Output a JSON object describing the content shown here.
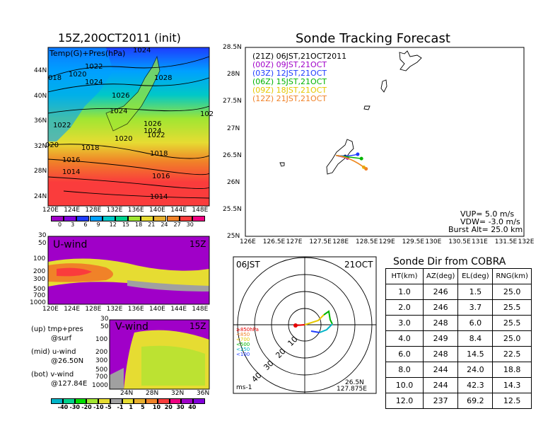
{
  "left_title": "15Z,20OCT2011 (init)",
  "right_title": "Sonde Tracking Forecast",
  "map_panel": {
    "label": "Temp(G)+Pres(hPa)",
    "lat_ticks": [
      "44N",
      "40N",
      "36N",
      "32N",
      "28N",
      "24N"
    ],
    "lon_ticks": [
      "120E",
      "124E",
      "128E",
      "132E",
      "136E",
      "140E",
      "144E",
      "148E"
    ],
    "isobar_labels": [
      "1024",
      "1020",
      "1022",
      "018",
      "1024",
      "1028",
      "1026",
      "1024",
      "1022",
      "1026",
      "1024",
      "1022",
      "1020",
      "020",
      "1018",
      "1016",
      "1018",
      "1014",
      "1016",
      "1014",
      "102"
    ],
    "colorbar_labels": [
      "0",
      "3",
      "6",
      "9",
      "12",
      "15",
      "18",
      "21",
      "24",
      "27",
      "30"
    ],
    "colorbar_colors": [
      "#a000c8",
      "#8200dc",
      "#1e3cff",
      "#00a0ff",
      "#00c8c8",
      "#00d28c",
      "#a0e632",
      "#e6dc32",
      "#e6af2d",
      "#f08228",
      "#fa3c3c",
      "#f00082"
    ]
  },
  "u_panel": {
    "label": "U-wind",
    "time": "15Z",
    "p_ticks": [
      "30",
      "50",
      "100",
      "200",
      "300",
      "500",
      "700",
      "1000"
    ],
    "lon_ticks": [
      "120E",
      "124E",
      "128E",
      "132E",
      "136E",
      "140E",
      "144E",
      "148E"
    ]
  },
  "v_panel": {
    "label": "V-wind",
    "time": "15Z",
    "p_ticks": [
      "30",
      "50",
      "100",
      "200",
      "300",
      "500",
      "700",
      "1000"
    ],
    "lat_ticks": [
      "24N",
      "28N",
      "32N",
      "36N"
    ]
  },
  "notes": [
    {
      "head": "(up) tmp+pres",
      "sub": "@surf"
    },
    {
      "head": "(mid) u-wind",
      "sub": "@26.50N"
    },
    {
      "head": "(bot) v-wind",
      "sub": "@127.84E"
    }
  ],
  "wind_colorbar": {
    "labels": [
      "-40",
      "-30",
      "-20",
      "-10",
      "-5",
      "-1",
      "1",
      "5",
      "10",
      "20",
      "30",
      "40"
    ],
    "colors": [
      "#00b4c8",
      "#00d28c",
      "#00dc00",
      "#a0e632",
      "#e6dc32",
      "#a0a0a0",
      "#e6dc32",
      "#e6af2d",
      "#f08228",
      "#fa3c3c",
      "#f00082",
      "#a000c8",
      "#8200dc"
    ]
  },
  "track_panel": {
    "lat_ticks": [
      "28.5N",
      "28N",
      "27.5N",
      "27N",
      "26.5N",
      "26N",
      "25.5N",
      "25N"
    ],
    "lon_ticks": [
      "126E",
      "126.5E",
      "127E",
      "127.5E",
      "128E",
      "128.5E",
      "129E",
      "129.5E",
      "130E",
      "130.5E",
      "131E",
      "131.5E",
      "132E"
    ],
    "legend": [
      {
        "text": "(21Z) 06JST,21OCT2011",
        "color": "#000000"
      },
      {
        "text": "(00Z) 09JST,21OCT",
        "color": "#a000c8"
      },
      {
        "text": "(03Z) 12JST,21OCT",
        "color": "#1e3cff"
      },
      {
        "text": "(06Z) 15JST,21OCT",
        "color": "#00b400"
      },
      {
        "text": "(09Z) 18JST,21OCT",
        "color": "#e6c800"
      },
      {
        "text": "(12Z) 21JST,21OCT",
        "color": "#f08228"
      }
    ],
    "params": [
      "VUP=  5.0 m/s",
      "VDW= -3.0 m/s",
      "Burst Alt= 25.0 km"
    ]
  },
  "polar_panel": {
    "top_left": "06JST",
    "top_right": "21OCT",
    "ring_labels": [
      "10",
      "20",
      "30",
      "40"
    ],
    "level_legend": [
      {
        "text": "≥850hPa",
        "color": "#e60000"
      },
      {
        "text": "<850",
        "color": "#f08228"
      },
      {
        "text": "<700",
        "color": "#e6c800"
      },
      {
        "text": "<500",
        "color": "#00b400"
      },
      {
        "text": "<250",
        "color": "#00b4c8"
      },
      {
        "text": "<100",
        "color": "#1e3cff"
      }
    ],
    "bottom_left": "ms-1",
    "lat_label": "26.5N",
    "lon_label": "127.875E"
  },
  "sonde_table": {
    "title": "Sonde Dir from COBRA",
    "headers": [
      "HT(km)",
      "AZ(deg)",
      "EL(deg)",
      "RNG(km)"
    ],
    "rows": [
      [
        "1.0",
        "246",
        "1.5",
        "25.0"
      ],
      [
        "2.0",
        "246",
        "3.7",
        "25.5"
      ],
      [
        "3.0",
        "248",
        "6.0",
        "25.5"
      ],
      [
        "4.0",
        "249",
        "8.4",
        "25.0"
      ],
      [
        "6.0",
        "248",
        "14.5",
        "22.5"
      ],
      [
        "8.0",
        "244",
        "24.0",
        "18.8"
      ],
      [
        "10.0",
        "244",
        "42.3",
        "14.3"
      ],
      [
        "12.0",
        "237",
        "69.2",
        "12.5"
      ]
    ]
  },
  "chart_data": [
    {
      "type": "heatmap",
      "title": "15Z,20OCT2011 (init)",
      "subtitle": "Temp(G)+Pres(hPa)",
      "xlim": [
        120,
        150
      ],
      "ylim": [
        22,
        48
      ],
      "legend": "colorbar-bottom"
    },
    {
      "type": "heatmap",
      "title": "U-wind",
      "xlim": [
        120,
        150
      ],
      "y_scale": "log-pressure",
      "ylim": [
        1000,
        30
      ]
    },
    {
      "type": "heatmap",
      "title": "V-wind",
      "xlim": [
        22,
        38
      ],
      "y_scale": "log-pressure",
      "ylim": [
        1000,
        30
      ]
    },
    {
      "type": "line",
      "title": "Sonde Tracking Forecast",
      "xlim": [
        126,
        132
      ],
      "ylim": [
        25,
        28.5
      ],
      "series": [
        {
          "name": "(21Z) 06JST,21OCT2011",
          "end": [
            128.15,
            26.48
          ]
        },
        {
          "name": "(00Z) 09JST,21OCT",
          "end": [
            128.2,
            26.45
          ]
        },
        {
          "name": "(03Z) 12JST,21OCT",
          "end": [
            128.42,
            26.52
          ]
        },
        {
          "name": "(06Z) 15JST,21OCT",
          "end": [
            128.5,
            26.44
          ]
        },
        {
          "name": "(09Z) 18JST,21OCT",
          "end": [
            128.55,
            26.28
          ]
        },
        {
          "name": "(12Z) 21JST,21OCT",
          "end": [
            128.6,
            26.25
          ]
        }
      ]
    },
    {
      "type": "table",
      "title": "Sonde Dir from COBRA",
      "columns": [
        "HT(km)",
        "AZ(deg)",
        "EL(deg)",
        "RNG(km)"
      ],
      "rows": [
        [
          1.0,
          246,
          1.5,
          25.0
        ],
        [
          2.0,
          246,
          3.7,
          25.5
        ],
        [
          3.0,
          248,
          6.0,
          25.5
        ],
        [
          4.0,
          249,
          8.4,
          25.0
        ],
        [
          6.0,
          248,
          14.5,
          22.5
        ],
        [
          8.0,
          244,
          24.0,
          18.8
        ],
        [
          10.0,
          244,
          42.3,
          14.3
        ],
        [
          12.0,
          237,
          69.2,
          12.5
        ]
      ]
    }
  ]
}
